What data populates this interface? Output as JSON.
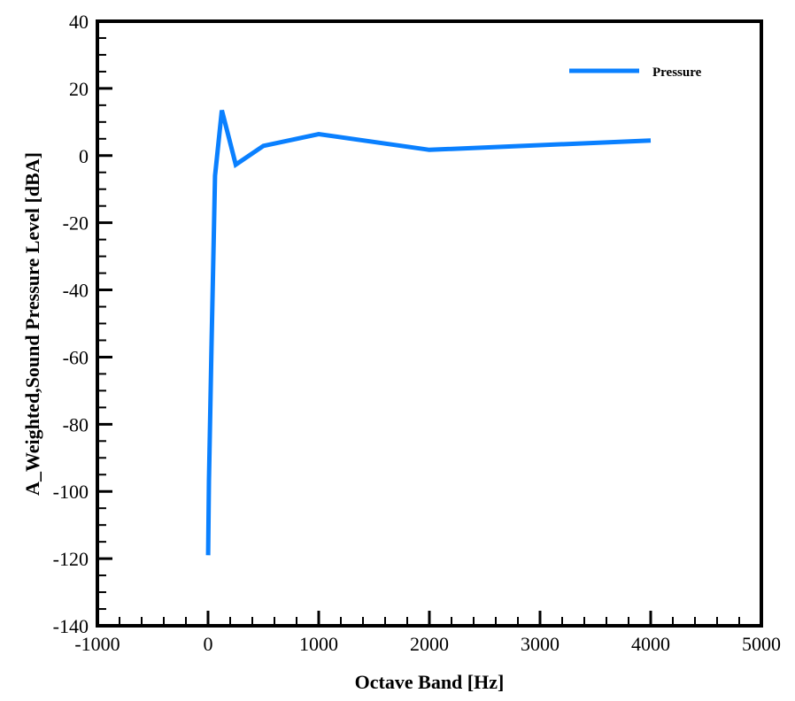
{
  "chart_data": {
    "type": "line",
    "title": "",
    "xlabel": "Octave Band [Hz]",
    "ylabel": "A_Weighted,Sound Pressure Level [dBA]",
    "xlim": [
      -1000,
      5000
    ],
    "ylim": [
      -140,
      40
    ],
    "xticks": [
      -1000,
      0,
      1000,
      2000,
      3000,
      4000,
      5000
    ],
    "yticks": [
      -140,
      -120,
      -100,
      -80,
      -60,
      -40,
      -20,
      0,
      20,
      40
    ],
    "x_minor_step": 200,
    "y_minor_step": 5,
    "grid": false,
    "legend_position": "upper right",
    "series": [
      {
        "name": "Pressure",
        "color": "#0a80ff",
        "x": [
          1,
          8,
          31.5,
          63,
          125,
          250,
          500,
          1000,
          2000,
          4000
        ],
        "values": [
          -119,
          -97,
          -57,
          -6,
          13.5,
          -2.7,
          2.9,
          6.4,
          1.7,
          4.5
        ]
      }
    ]
  },
  "legend": {
    "label": "Pressure"
  },
  "axes": {
    "xlabel": "Octave Band [Hz]",
    "ylabel": "A_Weighted,Sound Pressure Level [dBA]"
  }
}
